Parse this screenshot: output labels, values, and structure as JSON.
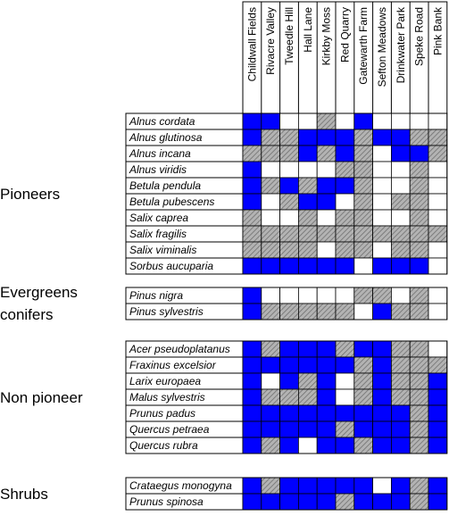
{
  "sites": [
    "Childwall Fields",
    "Rivacre Valley",
    "Tweedle Hill",
    "Hall Lane",
    "Kirkby Moss",
    "Red Quarry",
    "Gatewarth Farm",
    "Sefton Meadows",
    "Drinkwater Park",
    "Speke Road",
    "Pink Bank"
  ],
  "legend_states": {
    "B": "blue",
    "H": "hatched",
    "W": "white"
  },
  "colors": {
    "blue": "#0000ff",
    "hatch_bg": "#b0b0b0",
    "hatch_line": "#6e6e6e",
    "grid": "#000000"
  },
  "groups": [
    {
      "label": "Pioneers",
      "species": [
        {
          "name": "Alnus cordata",
          "cells": "BBWWHWBWWWW"
        },
        {
          "name": "Alnus glutinosa",
          "cells": "BHHBBBHBBHH"
        },
        {
          "name": "Alnus incana",
          "cells": "HHHBHBHWBBH"
        },
        {
          "name": "Alnus viridis",
          "cells": "BWWWWHHWWHW"
        },
        {
          "name": "Betula pendula",
          "cells": "BHBHBBHWWHW"
        },
        {
          "name": "Betula pubescens",
          "cells": "BWHBBWHWHHW"
        },
        {
          "name": "Salix caprea",
          "cells": "HWWHWHHWWHW"
        },
        {
          "name": "Salix fragilis",
          "cells": "HHHHHHHHHHH"
        },
        {
          "name": "Salix viminalis",
          "cells": "HHHHWHHWHHW"
        },
        {
          "name": "Sorbus aucuparia",
          "cells": "BBBBBBWBBBW"
        }
      ]
    },
    {
      "label": "Evergreens\nconifers",
      "species": [
        {
          "name": "Pinus nigra",
          "cells": "BWWWWWHHWHW"
        },
        {
          "name": "Pinus sylvestris",
          "cells": "BHHHHHWBHHW"
        }
      ]
    },
    {
      "label": "Non pioneer",
      "species": [
        {
          "name": "Acer pseudoplatanus",
          "cells": "BHBBBHBBHHW"
        },
        {
          "name": "Fraxinus excelsior",
          "cells": "BBBBBBHBHHH"
        },
        {
          "name": "Larix europaea",
          "cells": "BWBHBWHBHHB"
        },
        {
          "name": "Malus sylvestris",
          "cells": "BHHHBWHBHHB"
        },
        {
          "name": "Prunus padus",
          "cells": "BBBBBBBBBHB"
        },
        {
          "name": "Quercus petraea",
          "cells": "BBBBBHBBBHB"
        },
        {
          "name": "Quercus rubra",
          "cells": "BHBWBBHBBHB"
        }
      ]
    },
    {
      "label": "Shrubs",
      "species": [
        {
          "name": "Crataegus monogyna",
          "cells": "BHBBBBBWBHB"
        },
        {
          "name": "Prunus spinosa",
          "cells": "BBBBBHBBBHB"
        }
      ]
    }
  ]
}
